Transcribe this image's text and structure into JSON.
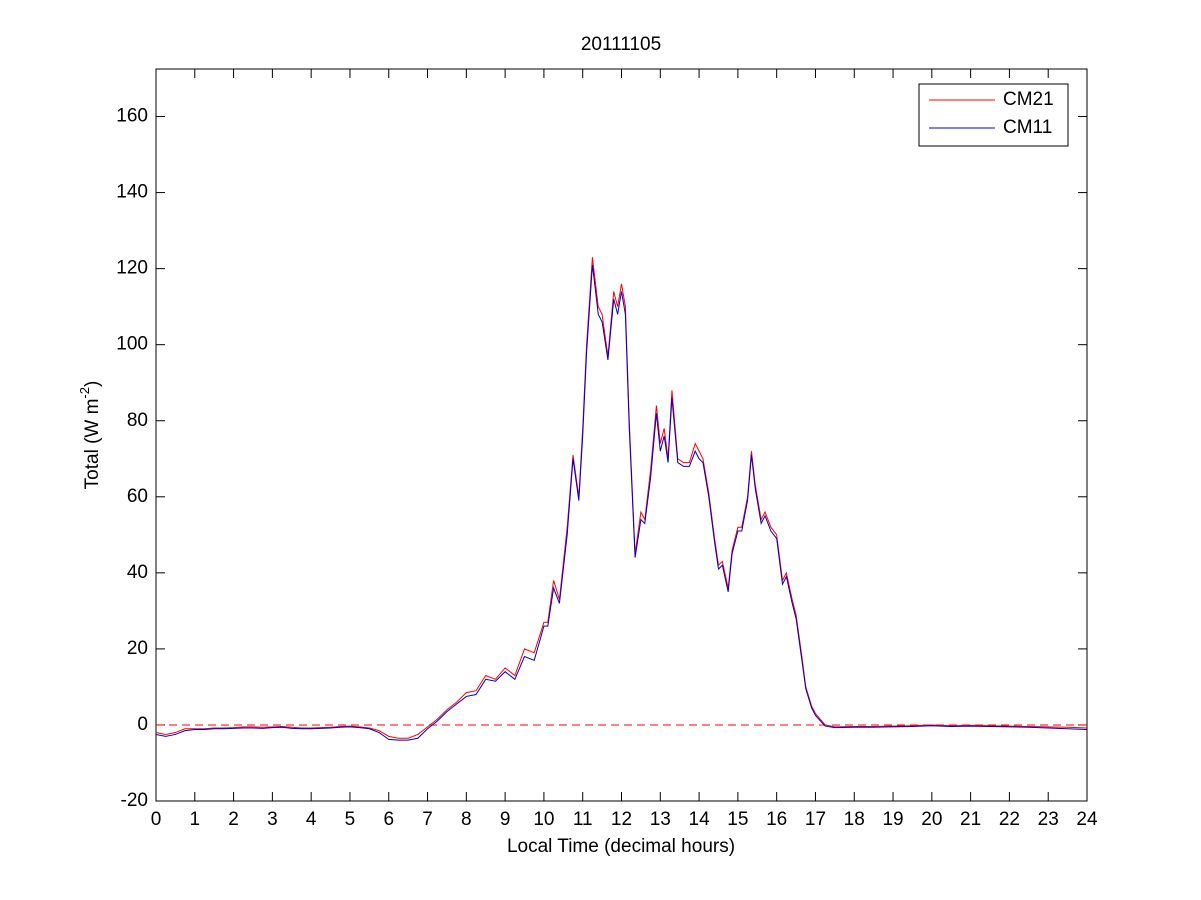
{
  "chart_data": {
    "type": "line",
    "title": "20111105",
    "xlabel": "Local Time (decimal hours)",
    "ylabel": [
      "Total (W m",
      "-2",
      ")"
    ],
    "x": [
      0,
      0.25,
      0.5,
      0.75,
      1,
      1.25,
      1.5,
      1.75,
      2,
      2.25,
      2.5,
      2.75,
      3,
      3.25,
      3.5,
      3.75,
      4,
      4.25,
      4.5,
      4.75,
      5,
      5.25,
      5.5,
      5.75,
      6,
      6.25,
      6.5,
      6.75,
      7,
      7.25,
      7.5,
      7.75,
      8,
      8.25,
      8.5,
      8.75,
      9,
      9.25,
      9.5,
      9.75,
      10,
      10.1,
      10.25,
      10.4,
      10.6,
      10.75,
      10.9,
      11,
      11.1,
      11.25,
      11.4,
      11.5,
      11.65,
      11.8,
      11.9,
      12,
      12.1,
      12.2,
      12.35,
      12.5,
      12.6,
      12.75,
      12.9,
      13,
      13.1,
      13.2,
      13.3,
      13.45,
      13.6,
      13.75,
      13.9,
      14,
      14.1,
      14.25,
      14.4,
      14.5,
      14.6,
      14.75,
      14.85,
      15,
      15.1,
      15.25,
      15.35,
      15.45,
      15.6,
      15.7,
      15.85,
      16,
      16.15,
      16.25,
      16.4,
      16.5,
      16.65,
      16.75,
      16.9,
      17,
      17.25,
      17.5,
      18,
      18.5,
      19,
      19.5,
      20,
      20.5,
      21,
      21.5,
      22,
      22.5,
      23,
      23.5,
      24
    ],
    "series": [
      {
        "name": "CM21",
        "color": "#ff0000",
        "values": [
          -2,
          -2.5,
          -2,
          -1,
          -1,
          -1,
          -0.8,
          -0.8,
          -0.7,
          -0.5,
          -0.5,
          -0.6,
          -0.5,
          -0.4,
          -0.6,
          -0.8,
          -0.8,
          -0.7,
          -0.6,
          -0.4,
          -0.3,
          -0.5,
          -0.8,
          -1.5,
          -3,
          -3.5,
          -3.5,
          -2.5,
          -0.5,
          1.5,
          4,
          6,
          8.5,
          9,
          13,
          12,
          15,
          13,
          20,
          19,
          27,
          27,
          38,
          33,
          52,
          71,
          60,
          78,
          100,
          123,
          110,
          108,
          97,
          114,
          110,
          116,
          110,
          80,
          45,
          56,
          54,
          67,
          84,
          74,
          78,
          70,
          88,
          70,
          69,
          69,
          74,
          72,
          70,
          61,
          49,
          42,
          43,
          36,
          46,
          52,
          52,
          60,
          72,
          63,
          54,
          56,
          52,
          50,
          38,
          40,
          33,
          29,
          18,
          10,
          5,
          3,
          0,
          -0.5,
          -0.4,
          -0.4,
          -0.3,
          -0.2,
          0,
          -0.2,
          -0.1,
          -0.2,
          -0.3,
          -0.4,
          -0.5,
          -0.6,
          -0.8
        ]
      },
      {
        "name": "CM11",
        "color": "#0000cc",
        "values": [
          -2.5,
          -3,
          -2.5,
          -1.5,
          -1.2,
          -1.2,
          -1,
          -1,
          -0.9,
          -0.8,
          -0.8,
          -0.9,
          -0.7,
          -0.6,
          -0.9,
          -1,
          -1,
          -0.9,
          -0.8,
          -0.6,
          -0.5,
          -0.7,
          -1,
          -2,
          -3.8,
          -4,
          -4,
          -3.5,
          -1,
          1,
          3.5,
          5.5,
          7.5,
          8,
          12,
          11.5,
          14,
          12,
          18,
          17,
          26,
          26,
          36,
          32,
          50,
          70,
          59,
          76,
          98,
          121,
          108,
          106,
          96,
          112,
          108,
          114,
          108,
          78,
          44,
          54,
          53,
          65,
          82,
          72,
          76,
          69,
          86,
          69,
          68,
          68,
          72,
          70,
          69,
          60,
          48,
          41,
          42,
          35,
          45,
          51,
          51,
          59,
          71,
          62,
          53,
          55,
          51,
          49,
          37,
          39,
          32,
          28,
          17,
          9.5,
          4.5,
          2.5,
          -0.3,
          -0.7,
          -0.6,
          -0.6,
          -0.5,
          -0.4,
          -0.2,
          -0.4,
          -0.3,
          -0.4,
          -0.5,
          -0.6,
          -0.8,
          -1,
          -1.2
        ]
      }
    ],
    "reference_line": {
      "y": 0,
      "color": "#ff0000",
      "style": "dashed"
    },
    "xlim": [
      0,
      24
    ],
    "xticks": [
      0,
      1,
      2,
      3,
      4,
      5,
      6,
      7,
      8,
      9,
      10,
      11,
      12,
      13,
      14,
      15,
      16,
      17,
      18,
      19,
      20,
      21,
      22,
      23,
      24
    ],
    "ylim": [
      -20,
      172.5
    ],
    "yticks": [
      -20,
      0,
      20,
      40,
      60,
      80,
      100,
      120,
      140,
      160
    ],
    "grid": false,
    "legend": "northeast"
  }
}
